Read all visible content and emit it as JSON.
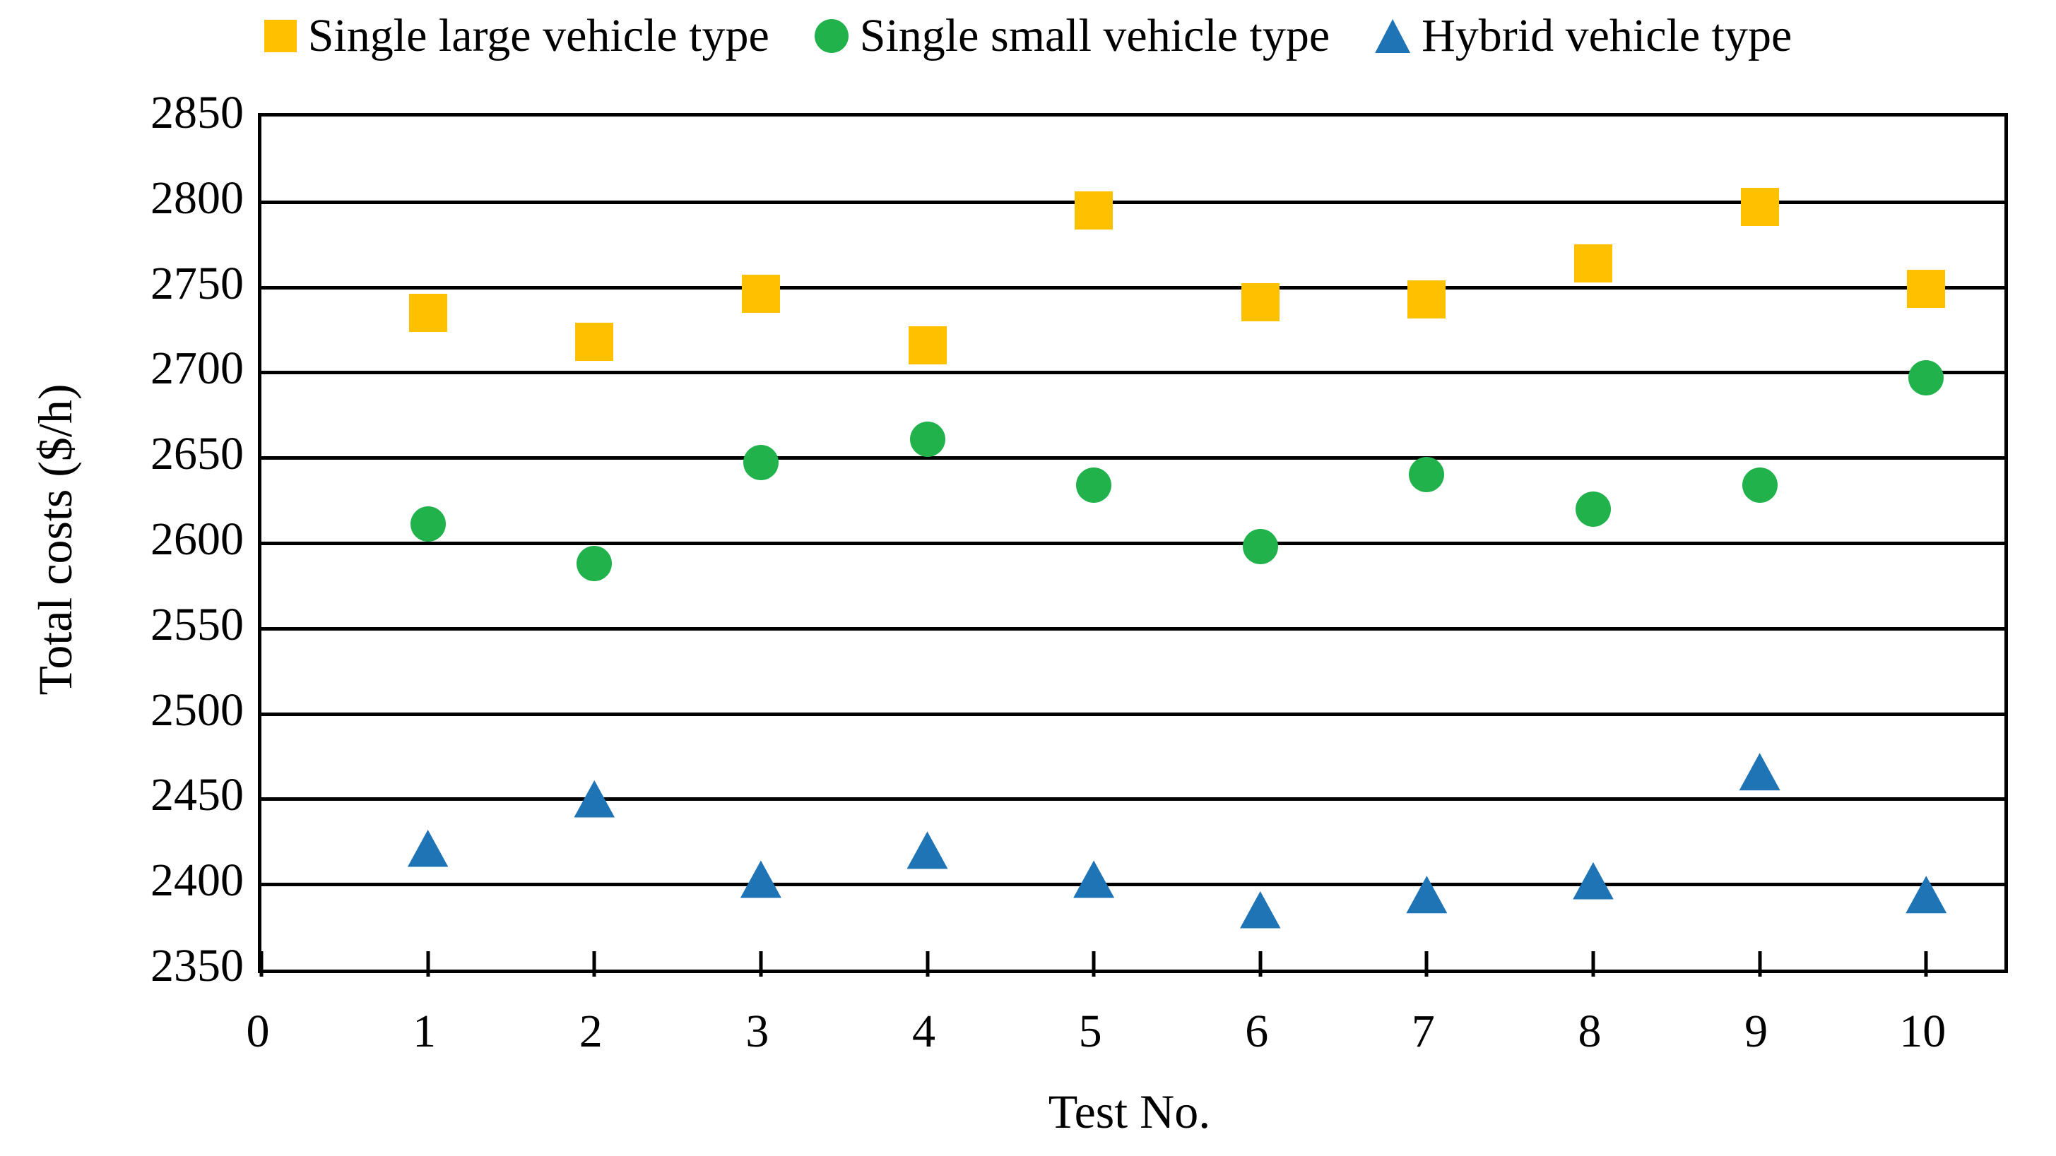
{
  "chart_data": {
    "type": "scatter",
    "title": "",
    "xlabel": "Test No.",
    "ylabel": "Total costs ($/h)",
    "x": [
      1,
      2,
      3,
      4,
      5,
      6,
      7,
      8,
      9,
      10
    ],
    "x_tick_labels": [
      "0",
      "1",
      "2",
      "3",
      "4",
      "5",
      "6",
      "7",
      "8",
      "9",
      "10"
    ],
    "x_tick_values": [
      0,
      1,
      2,
      3,
      4,
      5,
      6,
      7,
      8,
      9,
      10
    ],
    "xlim": [
      0,
      10.47
    ],
    "ylim": [
      2350,
      2850
    ],
    "y_tick_step": 50,
    "y_tick_labels": [
      "2850",
      "2800",
      "2750",
      "2700",
      "2650",
      "2600",
      "2550",
      "2500",
      "2450",
      "2400",
      "2350"
    ],
    "grid": "horizontal-black",
    "legend_position": "top-center",
    "series": [
      {
        "name": "Single large vehicle type",
        "marker": "square",
        "color": "#FFC000",
        "values": [
          2735,
          2718,
          2746,
          2716,
          2795,
          2741,
          2743,
          2764,
          2797,
          2749
        ]
      },
      {
        "name": "Single small vehicle type",
        "marker": "circle",
        "color": "#21B24C",
        "values": [
          2611,
          2588,
          2647,
          2661,
          2634,
          2598,
          2640,
          2620,
          2634,
          2697
        ]
      },
      {
        "name": "Hybrid vehicle type",
        "marker": "triangle",
        "color": "#1F74B5",
        "values": [
          2421,
          2450,
          2403,
          2420,
          2403,
          2385,
          2394,
          2402,
          2466,
          2394
        ]
      }
    ]
  }
}
